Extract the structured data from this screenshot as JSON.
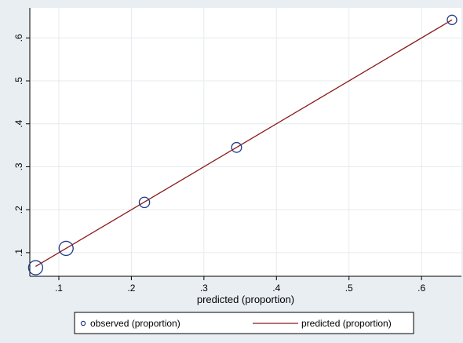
{
  "chart_data": {
    "type": "scatter",
    "title": "",
    "xlabel": "predicted (proportion)",
    "ylabel": "",
    "xlim": [
      0.06,
      0.655
    ],
    "ylim": [
      0.045,
      0.67
    ],
    "grid": true,
    "legend_position": "bottom",
    "x_ticks": [
      {
        "value": 0.1,
        "label": ".1"
      },
      {
        "value": 0.2,
        "label": ".2"
      },
      {
        "value": 0.3,
        "label": ".3"
      },
      {
        "value": 0.4,
        "label": ".4"
      },
      {
        "value": 0.5,
        "label": ".5"
      },
      {
        "value": 0.6,
        "label": ".6"
      }
    ],
    "y_ticks": [
      {
        "value": 0.1,
        "label": ".1"
      },
      {
        "value": 0.2,
        "label": ".2"
      },
      {
        "value": 0.3,
        "label": ".3"
      },
      {
        "value": 0.4,
        "label": ".4"
      },
      {
        "value": 0.5,
        "label": ".5"
      },
      {
        "value": 0.6,
        "label": ".6"
      }
    ],
    "series": [
      {
        "name": "observed (proportion)",
        "kind": "scatter",
        "color": "#1f3a8a",
        "points": [
          {
            "x": 0.068,
            "y": 0.065,
            "weight": 1.0
          },
          {
            "x": 0.11,
            "y": 0.11,
            "weight": 1.0
          },
          {
            "x": 0.218,
            "y": 0.217,
            "weight": 0.6
          },
          {
            "x": 0.345,
            "y": 0.345,
            "weight": 0.55
          },
          {
            "x": 0.642,
            "y": 0.642,
            "weight": 0.5
          }
        ]
      },
      {
        "name": "predicted (proportion)",
        "kind": "line",
        "color": "#8b1a1a",
        "points": [
          {
            "x": 0.068,
            "y": 0.068
          },
          {
            "x": 0.642,
            "y": 0.642
          }
        ]
      }
    ]
  }
}
